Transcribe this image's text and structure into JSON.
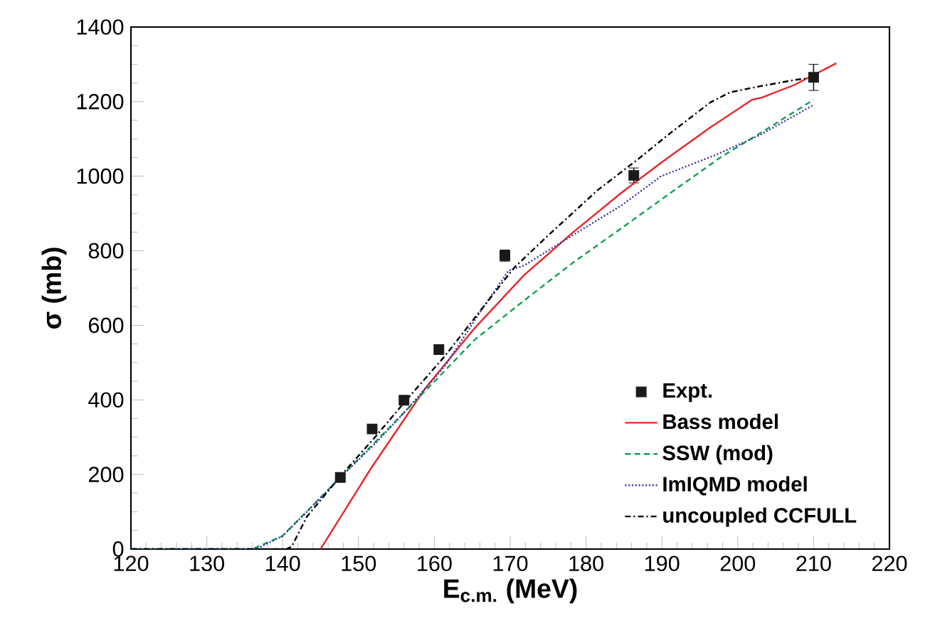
{
  "chart_data": {
    "type": "line",
    "xlabel": "E$_{c.m.}$ (MeV)",
    "ylabel": "σ (mb)",
    "xlim": [
      120,
      220
    ],
    "xticks": [
      120,
      130,
      140,
      150,
      160,
      170,
      180,
      190,
      200,
      210,
      220
    ],
    "ylim": [
      0,
      1400
    ],
    "yticks": [
      0,
      200,
      400,
      600,
      800,
      1000,
      1200,
      1400
    ],
    "grid": false,
    "legend": "bottom right",
    "series": [
      {
        "name": "Expt.",
        "type": "scatter",
        "marker": "square",
        "color": "#1a1a1a",
        "x": [
          147.6,
          151.8,
          156.0,
          160.6,
          169.3,
          186.3,
          210.0
        ],
        "values": [
          192,
          322,
          399,
          535,
          787,
          1002,
          1265
        ],
        "errors": [
          null,
          null,
          null,
          null,
          15,
          20,
          35
        ]
      },
      {
        "name": "Bass model",
        "marker": "none",
        "line_style": "solid",
        "color": "#e8262a",
        "x": [
          145.0,
          151.6,
          158.8,
          165.3,
          171.8,
          178.2,
          184.7,
          189.9,
          196.4,
          201.9,
          203.2,
          207.5,
          213.0
        ],
        "values": [
          0,
          215,
          431,
          592,
          734,
          848,
          956,
          1036,
          1131,
          1205,
          1211,
          1245,
          1303
        ]
      },
      {
        "name": "SSW (mod)",
        "marker": "none",
        "line_style": "dashed",
        "color": "#14a050",
        "x": [
          120,
          136.0,
          139.9,
          143.2,
          147.6,
          152.3,
          158.8,
          165.3,
          171.8,
          178.2,
          184.7,
          191.2,
          197.7,
          204.2,
          210.0
        ],
        "values": [
          0,
          0,
          34,
          101,
          192,
          289,
          424,
          561,
          666,
          767,
          861,
          956,
          1050,
          1131,
          1205
        ]
      },
      {
        "name": "ImIQMD model",
        "marker": "none",
        "line_style": "dotted",
        "color": "#3a3aa8",
        "x": [
          120,
          136.5,
          140.0,
          143.2,
          147.6,
          152.3,
          156.2,
          161.4,
          166.6,
          169.8,
          171.8,
          178.2,
          184.7,
          189.9,
          197.1,
          202.9,
          210.0
        ],
        "values": [
          0,
          0,
          35,
          100,
          192,
          285,
          370,
          491,
          653,
          747,
          760,
          841,
          922,
          1000,
          1057,
          1110,
          1191
        ]
      },
      {
        "name": "uncoupled CCFULL",
        "marker": "none",
        "line_style": "dashdot",
        "color": "#000000",
        "x": [
          120,
          140.5,
          141.2,
          143.2,
          147.6,
          152.3,
          156.2,
          161.4,
          166.6,
          170.5,
          175.0,
          181.5,
          186.7,
          191.2,
          196.4,
          199.0,
          202.9,
          207.5,
          210.0
        ],
        "values": [
          0,
          0,
          7,
          87,
          195,
          303,
          397,
          518,
          653,
          754,
          841,
          962,
          1043,
          1117,
          1198,
          1225,
          1241,
          1258,
          1265
        ]
      }
    ]
  }
}
